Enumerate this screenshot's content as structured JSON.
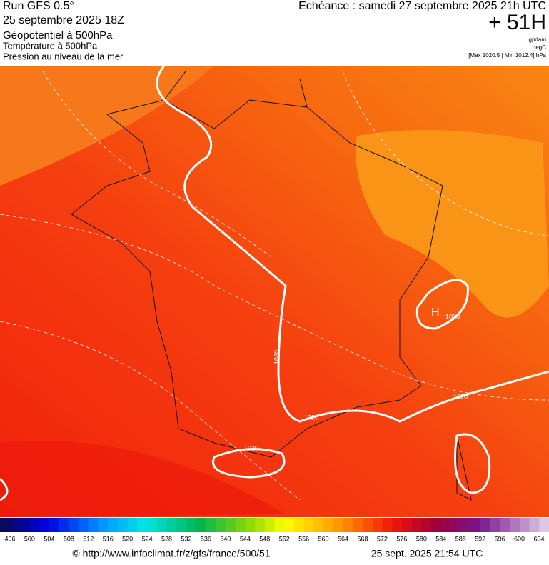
{
  "header": {
    "run": "Run GFS 0.5°",
    "run_date": "25 septembre 2025 18Z",
    "field1": "Géopotentiel à 500hPa",
    "field2": "Température à 500hPa",
    "field3": "Pression au niveau de la mer",
    "valid": "Echéance : samedi 27 septembre 2025 21h UTC",
    "lead": "+ 51H",
    "unit1": "gpdam",
    "unit2": "degC",
    "range": "[Max 1020.5 | Min 1012.4] hPa"
  },
  "map": {
    "high": "H",
    "high_value": "1020",
    "contours": [
      "1020",
      "1020",
      "1020",
      "1020"
    ]
  },
  "legend": {
    "labels": [
      496,
      500,
      504,
      508,
      512,
      516,
      520,
      524,
      528,
      532,
      536,
      540,
      544,
      548,
      552,
      556,
      560,
      564,
      568,
      572,
      576,
      580,
      584,
      588,
      592,
      596,
      600,
      604
    ]
  },
  "footer": {
    "url": "© http://www.infoclimat.fr/z/gfs/france/500/51",
    "generated": "25 sept. 2025 21:54 UTC"
  }
}
